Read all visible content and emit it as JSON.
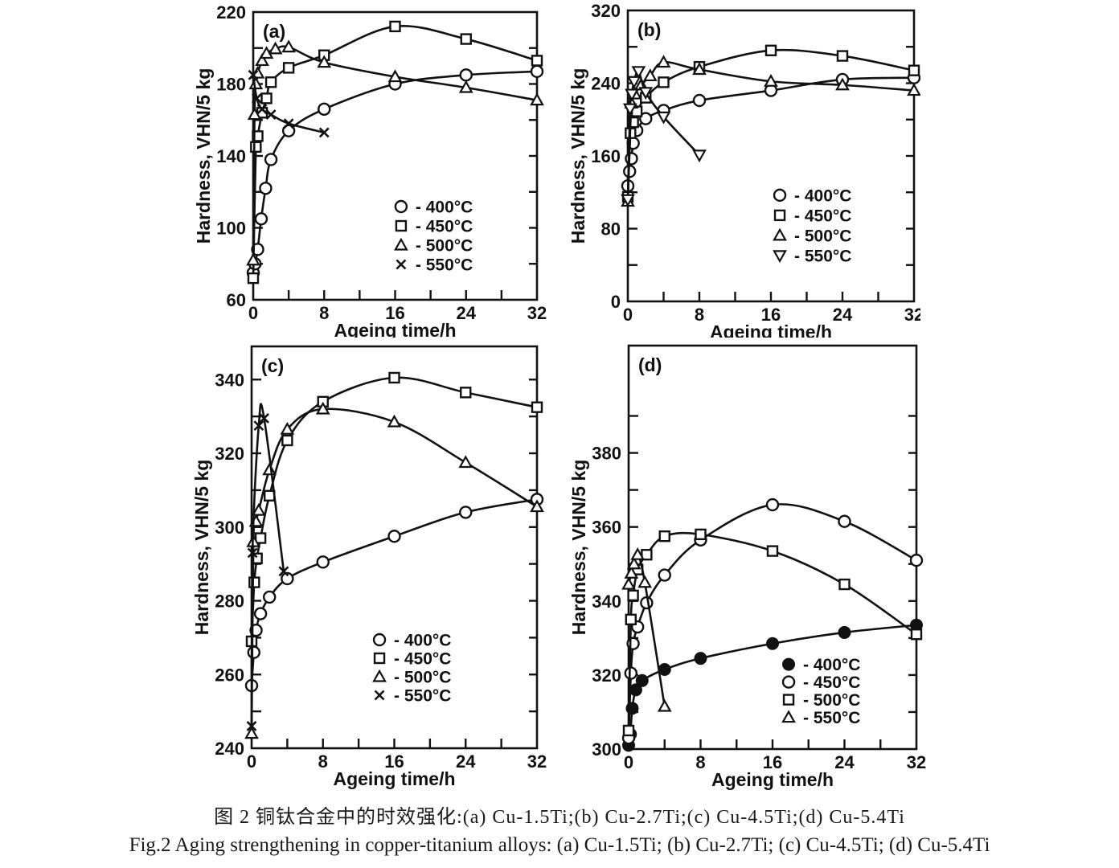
{
  "figure": {
    "caption_zh": "图 2  铜钛合金中的时效强化:(a) Cu-1.5Ti;(b) Cu-2.7Ti;(c) Cu-4.5Ti;(d) Cu-5.4Ti",
    "caption_en": "Fig.2 Aging strengthening in copper-titanium alloys: (a) Cu-1.5Ti; (b) Cu-2.7Ti; (c) Cu-4.5Ti; (d) Cu-5.4Ti"
  },
  "chart_data": [
    {
      "type": "line",
      "panel_label": "(a)",
      "alloy": "Cu-1.5Ti",
      "xlabel": "Ageing time/h",
      "ylabel": "Hardness, VHN/5 kg",
      "xlim": [
        0,
        32
      ],
      "ylim": [
        60,
        220
      ],
      "x_ticks": [
        0,
        8,
        16,
        24,
        32
      ],
      "x_minor": [
        4,
        12,
        20,
        28
      ],
      "y_ticks": [
        60,
        100,
        140,
        180,
        220
      ],
      "y_minor": [
        80,
        120,
        160,
        200
      ],
      "grid": false,
      "legend": {
        "fx": 0.521,
        "fy": 0.676
      },
      "series": [
        {
          "name": "400°C",
          "legend_label": "- 400°C",
          "marker": "circle-open",
          "points": [
            [
              0,
              75
            ],
            [
              0.2,
              80
            ],
            [
              0.5,
              88
            ],
            [
              0.9,
              105
            ],
            [
              1.4,
              122
            ],
            [
              2,
              138
            ],
            [
              4,
              154
            ],
            [
              8,
              166
            ],
            [
              16,
              180
            ],
            [
              24,
              185
            ],
            [
              32,
              187
            ]
          ]
        },
        {
          "name": "450°C",
          "legend_label": "- 450°C",
          "marker": "square-open",
          "points": [
            [
              0,
              72
            ],
            [
              0.3,
              145
            ],
            [
              0.5,
              151
            ],
            [
              1,
              164
            ],
            [
              1.5,
              172
            ],
            [
              2,
              181
            ],
            [
              4,
              189
            ],
            [
              8,
              196
            ],
            [
              16,
              212
            ],
            [
              24,
              205
            ],
            [
              32,
              193
            ]
          ]
        },
        {
          "name": "500°C",
          "legend_label": "- 500°C",
          "marker": "triangle-up-open",
          "points": [
            [
              0,
              82
            ],
            [
              0.15,
              163
            ],
            [
              0.3,
              180
            ],
            [
              0.5,
              186
            ],
            [
              1,
              193
            ],
            [
              1.5,
              197
            ],
            [
              2.5,
              199.5
            ],
            [
              4,
              200.5
            ],
            [
              8,
              192
            ],
            [
              16,
              184
            ],
            [
              24,
              178
            ],
            [
              32,
              171
            ]
          ]
        },
        {
          "name": "550°C",
          "legend_label": "- 550°C",
          "marker": "x-cross",
          "points": [
            [
              0,
              185
            ],
            [
              0.4,
              172
            ],
            [
              1,
              166
            ],
            [
              2,
              163
            ],
            [
              4,
              158
            ],
            [
              8,
              153
            ]
          ]
        }
      ]
    },
    {
      "type": "line",
      "panel_label": "(b)",
      "alloy": "Cu-2.7Ti",
      "xlabel": "Ageing time/h",
      "ylabel": "Hardness, VHN/5 kg",
      "xlim": [
        0,
        32
      ],
      "ylim": [
        0,
        320
      ],
      "x_ticks": [
        0,
        8,
        16,
        24,
        32
      ],
      "x_minor": [
        4,
        12,
        20,
        28
      ],
      "y_ticks": [
        0,
        80,
        160,
        240,
        320
      ],
      "y_minor": [
        40,
        120,
        200,
        280
      ],
      "grid": false,
      "legend": {
        "fx": 0.531,
        "fy": 0.635
      },
      "series": [
        {
          "name": "400°C",
          "legend_label": "- 400°C",
          "marker": "circle-open",
          "points": [
            [
              0,
              127
            ],
            [
              0.2,
              143
            ],
            [
              0.4,
              157
            ],
            [
              0.6,
              174
            ],
            [
              1,
              188
            ],
            [
              2,
              201
            ],
            [
              4,
              210
            ],
            [
              8,
              221
            ],
            [
              16,
              232
            ],
            [
              24,
              244
            ],
            [
              32,
              246
            ]
          ]
        },
        {
          "name": "450°C",
          "legend_label": "- 450°C",
          "marker": "square-open",
          "points": [
            [
              0,
              115
            ],
            [
              0.3,
              185
            ],
            [
              0.6,
              197
            ],
            [
              1,
              209
            ],
            [
              2,
              224
            ],
            [
              4,
              241
            ],
            [
              8,
              258
            ],
            [
              16,
              276
            ],
            [
              24,
              270
            ],
            [
              32,
              254
            ]
          ]
        },
        {
          "name": "500°C",
          "legend_label": "- 500°C",
          "marker": "triangle-up-open",
          "points": [
            [
              0,
              110
            ],
            [
              0.4,
              218
            ],
            [
              0.8,
              228
            ],
            [
              1.5,
              238
            ],
            [
              2.5,
              248
            ],
            [
              4,
              263
            ],
            [
              8,
              255
            ],
            [
              16,
              242
            ],
            [
              24,
              238
            ],
            [
              32,
              232
            ]
          ]
        },
        {
          "name": "550°C",
          "legend_label": "- 550°C",
          "marker": "triangle-down-open",
          "points": [
            [
              0,
              112
            ],
            [
              0.25,
              212
            ],
            [
              0.45,
              228
            ],
            [
              0.7,
              242
            ],
            [
              1.2,
              253
            ],
            [
              2,
              230
            ],
            [
              4,
              203
            ],
            [
              8,
              161
            ]
          ]
        }
      ]
    },
    {
      "type": "line",
      "panel_label": "(c)",
      "alloy": "Cu-4.5Ti",
      "xlabel": "Ageing time/h",
      "ylabel": "Hardness, VHN/5 kg",
      "xlim": [
        0,
        32
      ],
      "ylim": [
        240,
        349
      ],
      "x_ticks": [
        0,
        8,
        16,
        24,
        32
      ],
      "x_minor": [
        4,
        12,
        20,
        28
      ],
      "y_ticks": [
        240,
        260,
        280,
        300,
        320,
        340
      ],
      "y_minor": [
        250,
        270,
        290,
        310,
        330
      ],
      "grid": false,
      "legend": {
        "fx": 0.448,
        "fy": 0.73
      },
      "series": [
        {
          "name": "400°C",
          "legend_label": "- 400°C",
          "marker": "circle-open",
          "points": [
            [
              0,
              257
            ],
            [
              0.25,
              266
            ],
            [
              0.5,
              272
            ],
            [
              1,
              276.5
            ],
            [
              2,
              281
            ],
            [
              4,
              286
            ],
            [
              8,
              290.5
            ],
            [
              16,
              297.5
            ],
            [
              24,
              304
            ],
            [
              32,
              307.5
            ]
          ]
        },
        {
          "name": "450°C",
          "legend_label": "- 450°C",
          "marker": "square-open",
          "points": [
            [
              0,
              269
            ],
            [
              0.3,
              285
            ],
            [
              0.6,
              291.5
            ],
            [
              1,
              297
            ],
            [
              2,
              308.5
            ],
            [
              4,
              323.5
            ],
            [
              8,
              334
            ],
            [
              16,
              340.5
            ],
            [
              24,
              336.5
            ],
            [
              32,
              332.5
            ]
          ]
        },
        {
          "name": "500°C",
          "legend_label": "- 500°C",
          "marker": "triangle-up-open",
          "points": [
            [
              0,
              244
            ],
            [
              0.2,
              296
            ],
            [
              0.5,
              301.5
            ],
            [
              0.8,
              304.5
            ],
            [
              2,
              315.5
            ],
            [
              4,
              326.5
            ],
            [
              8,
              332
            ],
            [
              16,
              328.5
            ],
            [
              24,
              317.5
            ],
            [
              32,
              305.5
            ]
          ]
        },
        {
          "name": "550°C",
          "legend_label": "- 550°C",
          "marker": "x-cross",
          "points": [
            [
              0,
              246
            ],
            [
              0.1,
              293
            ],
            [
              0.8,
              327.5
            ],
            [
              1.4,
              329.5
            ],
            [
              3.6,
              288
            ]
          ]
        }
      ]
    },
    {
      "type": "line",
      "panel_label": "(d)",
      "alloy": "Cu-5.4Ti",
      "xlabel": "Ageing time/h",
      "ylabel": "Hardness, VHN/5 kg",
      "xlim": [
        0,
        32
      ],
      "ylim": [
        300,
        409
      ],
      "x_ticks": [
        0,
        8,
        16,
        24,
        32
      ],
      "x_minor": [
        4,
        12,
        20,
        28
      ],
      "y_ticks": [
        300,
        320,
        340,
        360,
        380
      ],
      "y_minor": [
        310,
        330,
        350,
        370,
        390
      ],
      "grid": false,
      "legend": {
        "fx": 0.556,
        "fy": 0.79
      },
      "series": [
        {
          "name": "400°C",
          "legend_label": "- 400°C",
          "marker": "circle-filled",
          "points": [
            [
              0,
              301
            ],
            [
              0.2,
              304
            ],
            [
              0.4,
              311
            ],
            [
              0.8,
              316
            ],
            [
              1.5,
              318.5
            ],
            [
              4,
              321.5
            ],
            [
              8,
              324.5
            ],
            [
              16,
              328.5
            ],
            [
              24,
              331.5
            ],
            [
              32,
              333.5
            ]
          ]
        },
        {
          "name": "450°C",
          "legend_label": "- 450°C",
          "marker": "circle-open",
          "points": [
            [
              0,
              303
            ],
            [
              0.25,
              320.5
            ],
            [
              0.5,
              328.5
            ],
            [
              1,
              333
            ],
            [
              2,
              339.5
            ],
            [
              4,
              347
            ],
            [
              8,
              356.5
            ],
            [
              16,
              366
            ],
            [
              24,
              361.5
            ],
            [
              32,
              351
            ]
          ]
        },
        {
          "name": "500°C",
          "legend_label": "- 500°C",
          "marker": "square-open",
          "points": [
            [
              0,
              305
            ],
            [
              0.25,
              335
            ],
            [
              0.5,
              341.5
            ],
            [
              1,
              348.5
            ],
            [
              2,
              352.5
            ],
            [
              4,
              357.5
            ],
            [
              8,
              358
            ],
            [
              16,
              353.5
            ],
            [
              24,
              344.5
            ],
            [
              32,
              331
            ]
          ]
        },
        {
          "name": "550°C",
          "legend_label": "- 550°C",
          "marker": "triangle-up-open",
          "points": [
            [
              0,
              344.5
            ],
            [
              0.3,
              347.5
            ],
            [
              0.6,
              350
            ],
            [
              1,
              352.5
            ],
            [
              1.8,
              345
            ],
            [
              4,
              311.5
            ]
          ]
        }
      ]
    }
  ]
}
